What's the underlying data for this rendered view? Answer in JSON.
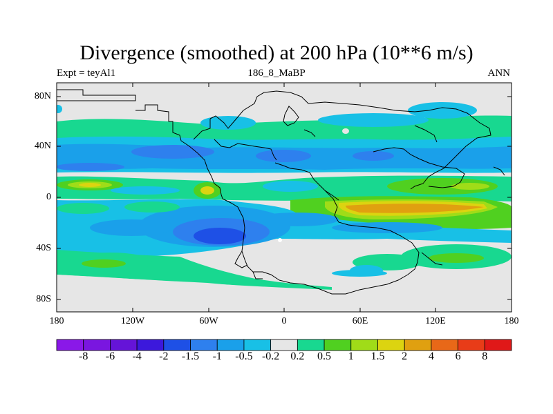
{
  "title": "Divergence (smoothed) at 200 hPa (10**6 m/s)",
  "left_label": "Expt = teyAl1",
  "center_label": "186_8_MaBP",
  "right_label": "ANN",
  "lat_ticks": [
    "80N",
    "40N",
    "0",
    "40S",
    "80S"
  ],
  "lon_ticks": [
    "180",
    "120W",
    "60W",
    "0",
    "60E",
    "120E",
    "180"
  ],
  "colorbar": {
    "labels": [
      "-8",
      "-6",
      "-4",
      "-2",
      "-1.5",
      "-1",
      "-0.5",
      "-0.2",
      "0.2",
      "0.5",
      "1",
      "1.5",
      "2",
      "4",
      "6",
      "8"
    ],
    "colors": [
      "#8a18e8",
      "#7a16e0",
      "#6514d8",
      "#3c18dc",
      "#1e50e6",
      "#2e80ee",
      "#1aa0ea",
      "#18c0e6",
      "#e6e6e6",
      "#18d890",
      "#50d020",
      "#a0dc18",
      "#dcd410",
      "#e0a010",
      "#e86818",
      "#e83c18",
      "#e01818"
    ]
  },
  "colors": {
    "blue_dark": "#1e50e6",
    "blue": "#2e80ee",
    "blue_light": "#1aa0ea",
    "cyan": "#18c0e6",
    "neutral": "#e6e6e6",
    "teal_green": "#18d890",
    "green": "#50d020",
    "yellow_green": "#a0dc18",
    "yellow": "#dcd410",
    "orange": "#e0a010"
  }
}
